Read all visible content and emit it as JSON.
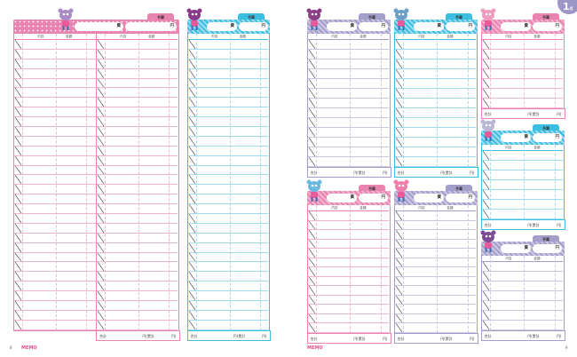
{
  "labels": {
    "budget_tab": "予算",
    "expense_suffix": "費",
    "yen_suffix": "円",
    "col_content": "内容",
    "col_amount": "金額",
    "total_label": "合計",
    "total_yen": "円(累計",
    "total_close": "円)"
  },
  "footer": {
    "memo_left": "MEMO",
    "memo_right": "MEMO",
    "page_left": "8",
    "page_right": "9"
  },
  "month": {
    "number": "1",
    "unit": "月"
  },
  "colors": {
    "pink": "#e983b0",
    "cyan": "#3cbde2",
    "purple": "#a49fca",
    "pink_light": "#f4b3cf",
    "cyan_light": "#9fdcef",
    "purple_light": "#cbc7e3"
  },
  "cards": [
    {
      "id": "left-pink-double",
      "color": "pink",
      "rows": 30,
      "double": true,
      "mascot": "cat"
    },
    {
      "id": "left-cyan",
      "color": "cyan",
      "rows": 30,
      "mascot": "bear"
    },
    {
      "id": "right-purple-1",
      "color": "purple",
      "rows": 13,
      "mascot": "dog"
    },
    {
      "id": "right-cyan-1",
      "color": "cyan",
      "rows": 13,
      "mascot": "frog"
    },
    {
      "id": "right-pink-small",
      "color": "pink",
      "rows": 7,
      "mascot": "rabbit"
    },
    {
      "id": "right-cyan-small",
      "color": "cyan",
      "rows": 7,
      "mascot": "goat"
    },
    {
      "id": "right-pink-2",
      "color": "pink",
      "rows": 13,
      "mascot": "elephant"
    },
    {
      "id": "right-purple-2",
      "color": "purple",
      "rows": 13,
      "mascot": "pig"
    },
    {
      "id": "right-purple-small",
      "color": "purple",
      "rows": 7,
      "mascot": "monkey"
    }
  ]
}
